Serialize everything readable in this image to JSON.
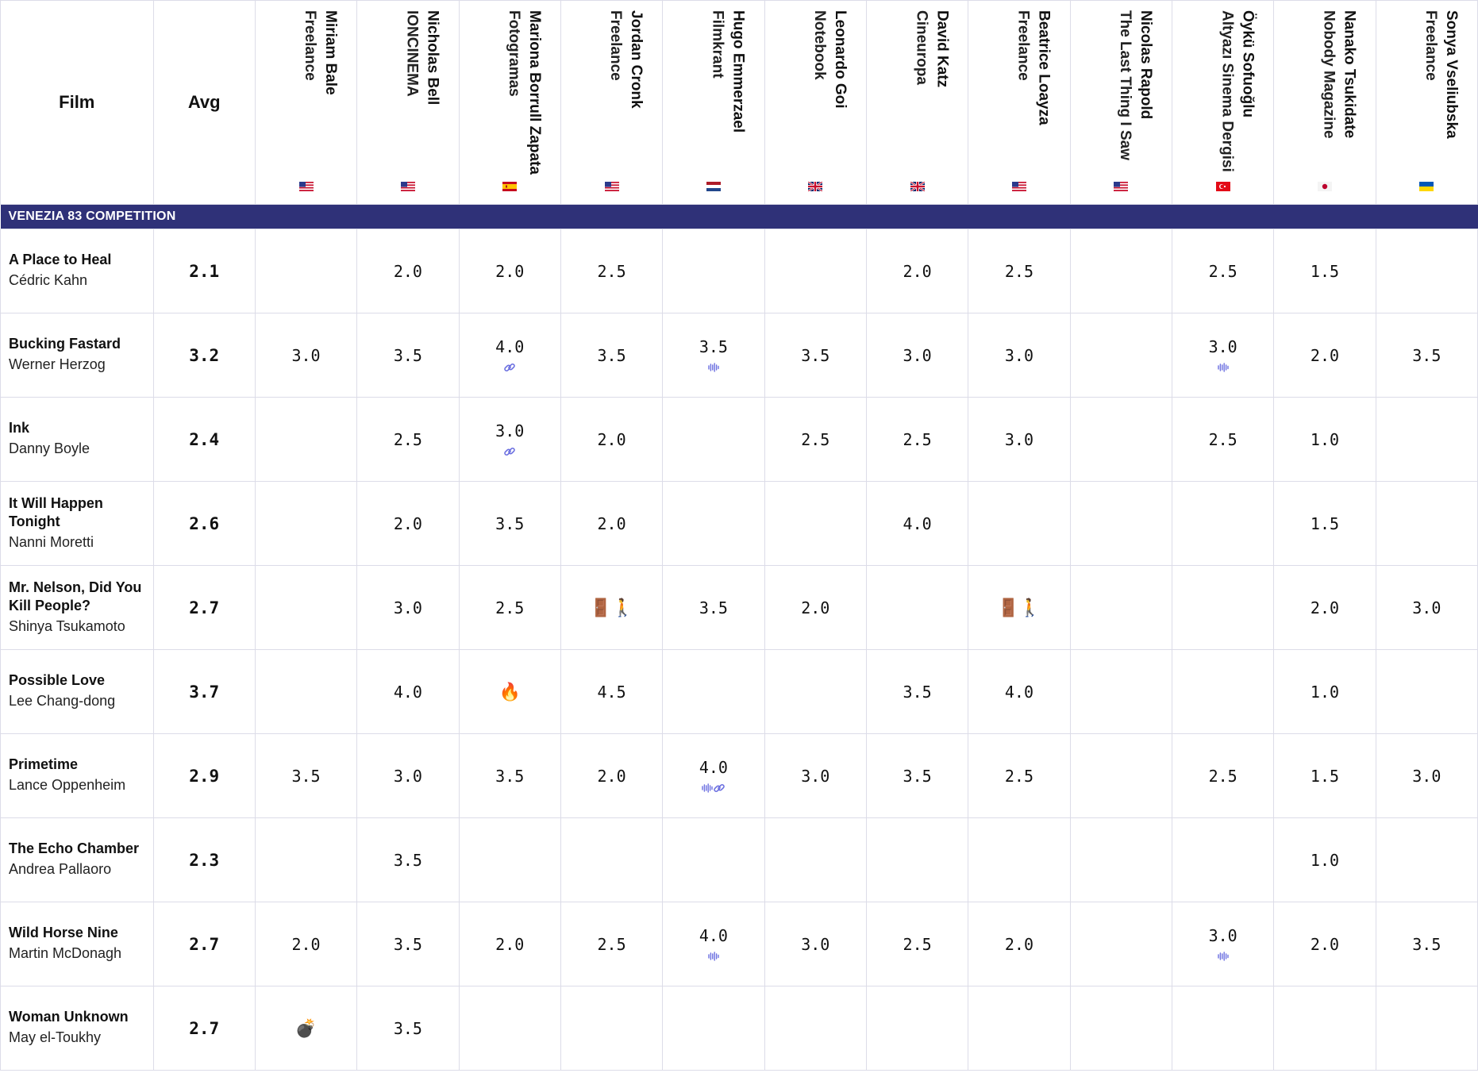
{
  "header": {
    "film_label": "Film",
    "avg_label": "Avg"
  },
  "critics": [
    {
      "name": "Miriam Bale",
      "outlet": "Freelance",
      "flag": "us"
    },
    {
      "name": "Nicholas Bell",
      "outlet": "IONCINEMA",
      "flag": "us"
    },
    {
      "name": "Mariona Borrull Zapata",
      "outlet": "Fotogramas",
      "flag": "es"
    },
    {
      "name": "Jordan Cronk",
      "outlet": "Freelance",
      "flag": "us"
    },
    {
      "name": "Hugo Emmerzael",
      "outlet": "Filmkrant",
      "flag": "nl"
    },
    {
      "name": "Leonardo Goi",
      "outlet": "Notebook",
      "flag": "gb"
    },
    {
      "name": "David Katz",
      "outlet": "Cineuropa",
      "flag": "gb"
    },
    {
      "name": "Beatrice Loayza",
      "outlet": "Freelance",
      "flag": "us"
    },
    {
      "name": "Nicolas Rapold",
      "outlet": "The Last Thing I Saw",
      "flag": "us"
    },
    {
      "name": "Öykü Sofuoğlu",
      "outlet": "Altyazı Sinema Dergisi",
      "flag": "tr"
    },
    {
      "name": "Nanako Tsukidate",
      "outlet": "Nobody Magazine",
      "flag": "jp"
    },
    {
      "name": "Sonya Vseliubska",
      "outlet": "Freelance",
      "flag": "ua"
    }
  ],
  "section": {
    "label": "VENEZIA 83 COMPETITION"
  },
  "films": [
    {
      "title": "A Place to Heal",
      "director": "Cédric Kahn",
      "avg": "2.1",
      "scores": [
        "",
        "2.0",
        "2.0",
        "2.5",
        "",
        "",
        "2.0",
        "2.5",
        "",
        "2.5",
        "1.5",
        ""
      ],
      "icons": [
        "",
        "",
        "",
        "",
        "",
        "",
        "",
        "",
        "",
        "",
        "",
        ""
      ]
    },
    {
      "title": "Bucking Fastard",
      "director": "Werner Herzog",
      "avg": "3.2",
      "scores": [
        "3.0",
        "3.5",
        "4.0",
        "3.5",
        "3.5",
        "3.5",
        "3.0",
        "3.0",
        "",
        "3.0",
        "2.0",
        "3.5"
      ],
      "icons": [
        "",
        "",
        "link",
        "",
        "wave",
        "",
        "",
        "",
        "",
        "wave",
        "",
        ""
      ]
    },
    {
      "title": "Ink",
      "director": "Danny Boyle",
      "avg": "2.4",
      "scores": [
        "",
        "2.5",
        "3.0",
        "2.0",
        "",
        "2.5",
        "2.5",
        "3.0",
        "",
        "2.5",
        "1.0",
        ""
      ],
      "icons": [
        "",
        "",
        "link",
        "",
        "",
        "",
        "",
        "",
        "",
        "",
        "",
        ""
      ]
    },
    {
      "title": "It Will Happen Tonight",
      "director": "Nanni Moretti",
      "avg": "2.6",
      "scores": [
        "",
        "2.0",
        "3.5",
        "2.0",
        "",
        "",
        "4.0",
        "",
        "",
        "",
        "1.5",
        ""
      ],
      "icons": [
        "",
        "",
        "",
        "",
        "",
        "",
        "",
        "",
        "",
        "",
        "",
        ""
      ]
    },
    {
      "title": "Mr. Nelson, Did You Kill People?",
      "director": "Shinya Tsukamoto",
      "avg": "2.7",
      "scores": [
        "",
        "3.0",
        "2.5",
        "🚪🚶",
        "3.5",
        "2.0",
        "",
        "🚪🚶",
        "",
        "",
        "2.0",
        "3.0"
      ],
      "icons": [
        "",
        "",
        "",
        "",
        "",
        "",
        "",
        "",
        "",
        "",
        "",
        ""
      ]
    },
    {
      "title": "Possible Love",
      "director": "Lee Chang-dong",
      "avg": "3.7",
      "scores": [
        "",
        "4.0",
        "🔥",
        "4.5",
        "",
        "",
        "3.5",
        "4.0",
        "",
        "",
        "1.0",
        ""
      ],
      "icons": [
        "",
        "",
        "",
        "",
        "",
        "",
        "",
        "",
        "",
        "",
        "",
        ""
      ]
    },
    {
      "title": "Primetime",
      "director": "Lance Oppenheim",
      "avg": "2.9",
      "scores": [
        "3.5",
        "3.0",
        "3.5",
        "2.0",
        "4.0",
        "3.0",
        "3.5",
        "2.5",
        "",
        "2.5",
        "1.5",
        "3.0"
      ],
      "icons": [
        "",
        "",
        "",
        "",
        "wave+link",
        "",
        "",
        "",
        "",
        "",
        "",
        ""
      ]
    },
    {
      "title": "The Echo Chamber",
      "director": "Andrea Pallaoro",
      "avg": "2.3",
      "scores": [
        "",
        "3.5",
        "",
        "",
        "",
        "",
        "",
        "",
        "",
        "",
        "1.0",
        ""
      ],
      "icons": [
        "",
        "",
        "",
        "",
        "",
        "",
        "",
        "",
        "",
        "",
        "",
        ""
      ]
    },
    {
      "title": "Wild Horse Nine",
      "director": "Martin McDonagh",
      "avg": "2.7",
      "scores": [
        "2.0",
        "3.5",
        "2.0",
        "2.5",
        "4.0",
        "3.0",
        "2.5",
        "2.0",
        "",
        "3.0",
        "2.0",
        "3.5"
      ],
      "icons": [
        "",
        "",
        "",
        "",
        "wave",
        "",
        "",
        "",
        "",
        "wave",
        "",
        ""
      ]
    },
    {
      "title": "Woman Unknown",
      "director": "May el-Toukhy",
      "avg": "2.7",
      "scores": [
        "💣",
        "3.5",
        "",
        "",
        "",
        "",
        "",
        "",
        "",
        "",
        "",
        ""
      ],
      "icons": [
        "",
        "",
        "",
        "",
        "",
        "",
        "",
        "",
        "",
        "",
        "",
        ""
      ]
    }
  ]
}
